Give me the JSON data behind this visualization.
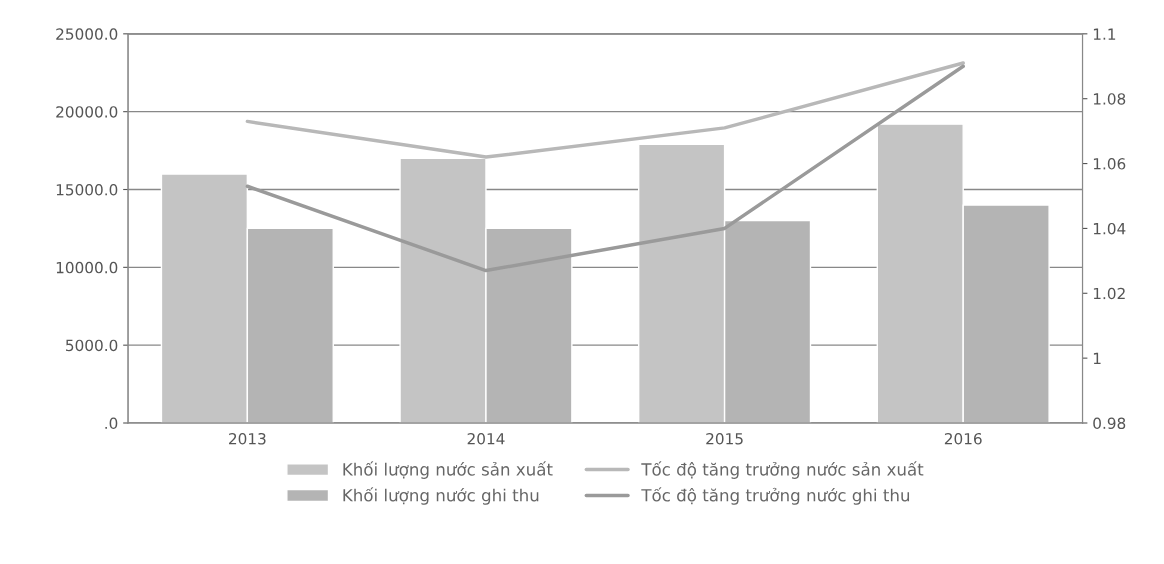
{
  "chart_data": {
    "type": "bar",
    "categories": [
      "2013",
      "2014",
      "2015",
      "2016"
    ],
    "series": [
      {
        "name": "Khối lượng nước sản xuất",
        "color": "#c4c4c4",
        "values": [
          16000,
          17000,
          17900,
          19200
        ]
      },
      {
        "name": "Khối lượng nước ghi thu",
        "color": "#b4b4b4",
        "values": [
          12500,
          12500,
          13000,
          14000
        ]
      },
      {
        "name": "Tốc độ tăng trưởng nước sản xuất",
        "type": "line",
        "axis": "y2",
        "color": "#b8b8b8",
        "values": [
          1.073,
          1.062,
          1.071,
          1.091
        ]
      },
      {
        "name": "Tốc độ tăng trưởng nước ghi thu",
        "type": "line",
        "axis": "y2",
        "color": "#9a9a9a",
        "values": [
          1.053,
          1.027,
          1.04,
          1.09
        ]
      }
    ],
    "ylim": [
      0,
      25000
    ],
    "yticks": [
      {
        "value": 0,
        "label": ".0"
      },
      {
        "value": 5000,
        "label": "5000.0"
      },
      {
        "value": 10000,
        "label": "10000.0"
      },
      {
        "value": 15000,
        "label": "15000.0"
      },
      {
        "value": 20000,
        "label": "20000.0"
      },
      {
        "value": 25000,
        "label": "25000.0"
      }
    ],
    "y2lim": [
      0.98,
      1.1
    ],
    "y2ticks": [
      0.98,
      1,
      1.02,
      1.04,
      1.06,
      1.08,
      1.1
    ],
    "grid": "y",
    "legend": "bottom",
    "marker": "none",
    "line_style": "solid"
  }
}
